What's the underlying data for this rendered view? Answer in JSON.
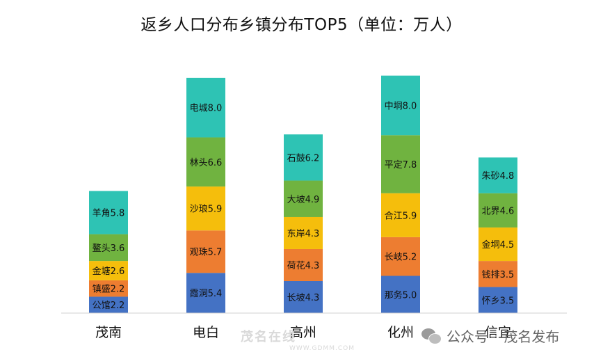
{
  "chart_data": {
    "type": "bar",
    "stacked": true,
    "title": "返乡人口分布乡镇分布TOP5（单位：万人）",
    "categories": [
      "茂南",
      "电白",
      "高州",
      "化州",
      "信宜"
    ],
    "segment_colors": [
      "#4472C4",
      "#ED7D31",
      "#F5BE0C",
      "#70B340",
      "#2EC3B4"
    ],
    "stacks": [
      {
        "category": "茂南",
        "segments": [
          {
            "label": "公馆2.2",
            "value": 2.2
          },
          {
            "label": "镇盛2.2",
            "value": 2.2
          },
          {
            "label": "金塘2.6",
            "value": 2.6
          },
          {
            "label": "鳌头3.6",
            "value": 3.6
          },
          {
            "label": "羊角5.8",
            "value": 5.8
          }
        ]
      },
      {
        "category": "电白",
        "segments": [
          {
            "label": "霞洞5.4",
            "value": 5.4
          },
          {
            "label": "观珠5.7",
            "value": 5.7
          },
          {
            "label": "沙琅5.9",
            "value": 5.9
          },
          {
            "label": "林头6.6",
            "value": 6.6
          },
          {
            "label": "电城8.0",
            "value": 8.0
          }
        ]
      },
      {
        "category": "高州",
        "segments": [
          {
            "label": "长坡4.3",
            "value": 4.3
          },
          {
            "label": "荷花4.3",
            "value": 4.3
          },
          {
            "label": "东岸4.3",
            "value": 4.3
          },
          {
            "label": "大坡4.9",
            "value": 4.9
          },
          {
            "label": "石鼓6.2",
            "value": 6.2
          }
        ]
      },
      {
        "category": "化州",
        "segments": [
          {
            "label": "那务5.0",
            "value": 5.0
          },
          {
            "label": "长岐5.2",
            "value": 5.2
          },
          {
            "label": "合江5.9",
            "value": 5.9
          },
          {
            "label": "平定7.8",
            "value": 7.8
          },
          {
            "label": "中垌8.0",
            "value": 8.0
          }
        ]
      },
      {
        "category": "信宜",
        "segments": [
          {
            "label": "怀乡3.5",
            "value": 3.5
          },
          {
            "label": "钱排3.5",
            "value": 3.5
          },
          {
            "label": "金垌4.5",
            "value": 4.5
          },
          {
            "label": "北界4.6",
            "value": 4.6
          },
          {
            "label": "朱砂4.8",
            "value": 4.8
          }
        ]
      }
    ],
    "legend": "none",
    "grid": false
  },
  "watermark": {
    "text": "茂名在线",
    "url": "WWW.GDMM.COM"
  },
  "credit": {
    "channel": "公众号",
    "separator": "·",
    "name": "茂名发布"
  }
}
